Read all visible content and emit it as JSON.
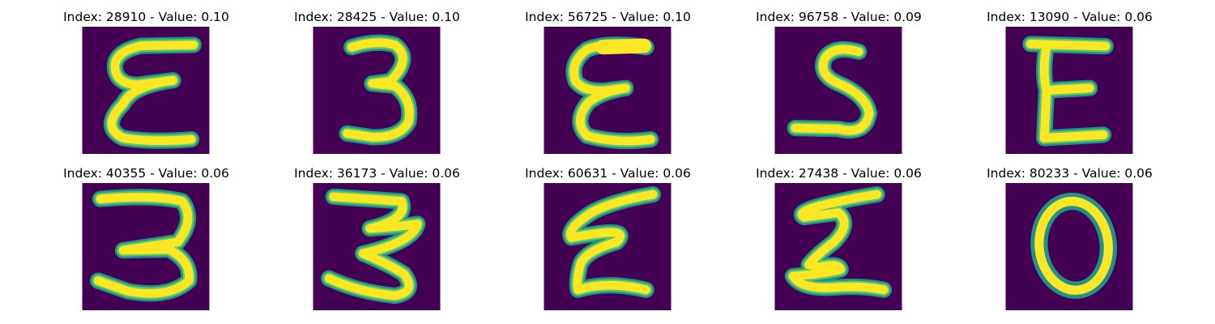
{
  "colors": {
    "background": "#440154",
    "stroke_outer": "#21918c",
    "stroke_mid": "#5ec962",
    "stroke_core": "#fde725"
  },
  "panels": [
    {
      "title": "Index: 28910 - Value: 0.10",
      "glyph": "epsilon-a"
    },
    {
      "title": "Index: 28425 - Value: 0.10",
      "glyph": "three-a"
    },
    {
      "title": "Index: 56725 - Value: 0.10",
      "glyph": "epsilon-b"
    },
    {
      "title": "Index: 96758 - Value: 0.09",
      "glyph": "five-s"
    },
    {
      "title": "Index: 13090 - Value: 0.06",
      "glyph": "e-block"
    },
    {
      "title": "Index: 40355 - Value: 0.06",
      "glyph": "three-b"
    },
    {
      "title": "Index: 36173 - Value: 0.06",
      "glyph": "three-c"
    },
    {
      "title": "Index: 60631 - Value: 0.06",
      "glyph": "epsilon-c"
    },
    {
      "title": "Index: 27438 - Value: 0.06",
      "glyph": "sigma"
    },
    {
      "title": "Index: 80233 - Value: 0.06",
      "glyph": "zero"
    }
  ]
}
